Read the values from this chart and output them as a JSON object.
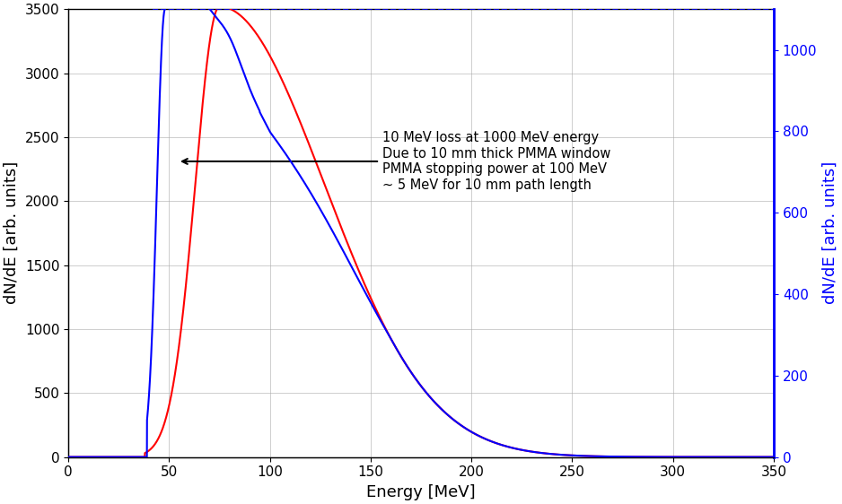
{
  "xlabel": "Energy [MeV]",
  "ylabel_left": "dN/dE [arb. units]",
  "ylabel_right": "dN/dE [arb. units]",
  "xlim": [
    0,
    350
  ],
  "ylim_left": [
    0,
    3500
  ],
  "ylim_right": [
    0,
    1100
  ],
  "xticks": [
    0,
    50,
    100,
    150,
    200,
    250,
    300,
    350
  ],
  "yticks_left": [
    0,
    500,
    1000,
    1500,
    2000,
    2500,
    3000,
    3500
  ],
  "yticks_right": [
    0,
    200,
    400,
    600,
    800,
    1000
  ],
  "annotation_lines": [
    "10 MeV loss at 1000 MeV energy",
    "Due to 10 mm thick PMMA window",
    "PMMA stopping power at 100 MeV",
    "~ 5 MeV for 10 mm path length"
  ],
  "red_color": "#ff0000",
  "blue_color": "#0000ff",
  "background_color": "#ffffff",
  "grid_color": "#aaaaaa"
}
